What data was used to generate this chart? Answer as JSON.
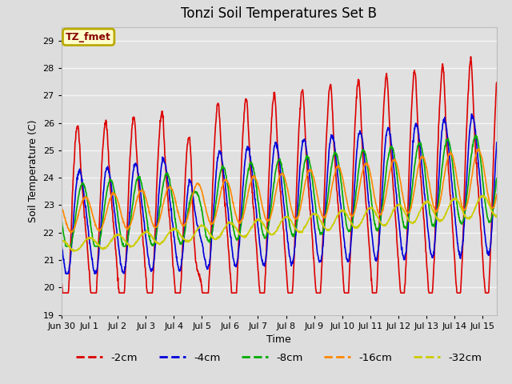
{
  "title": "Tonzi Soil Temperatures Set B",
  "xlabel": "Time",
  "ylabel": "Soil Temperature (C)",
  "annotation": "TZ_fmet",
  "ylim": [
    19.0,
    29.5
  ],
  "yticks": [
    19.0,
    20.0,
    21.0,
    22.0,
    23.0,
    24.0,
    25.0,
    26.0,
    27.0,
    28.0,
    29.0
  ],
  "fig_bg": "#dddddd",
  "plot_bg": "#e0e0e0",
  "grid_color": "#f5f5f5",
  "series": [
    {
      "label": "-2cm",
      "color": "#dd0000",
      "lw": 1.2
    },
    {
      "label": "-4cm",
      "color": "#0000dd",
      "lw": 1.2
    },
    {
      "label": "-8cm",
      "color": "#00aa00",
      "lw": 1.2
    },
    {
      "label": "-16cm",
      "color": "#ff8800",
      "lw": 1.2
    },
    {
      "label": "-32cm",
      "color": "#cccc00",
      "lw": 1.2
    }
  ],
  "xlim": [
    0,
    15.5
  ],
  "tick_positions": [
    0,
    1,
    2,
    3,
    4,
    5,
    6,
    7,
    8,
    9,
    10,
    11,
    12,
    13,
    14,
    15
  ],
  "tick_labels": [
    "Jun 30",
    "Jul 1",
    "Jul 2",
    "Jul 3",
    "Jul 4",
    "Jul 5",
    "Jul 6",
    "Jul 7",
    "Jul 8",
    "Jul 9",
    "Jul 10",
    "Jul 11",
    "Jul 12",
    "Jul 13",
    "Jul 14",
    "Jul 15"
  ]
}
